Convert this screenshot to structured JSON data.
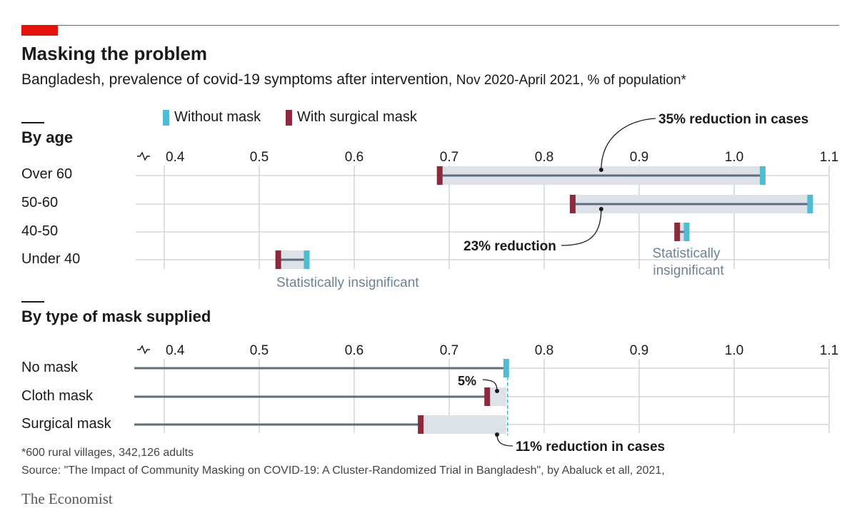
{
  "header": {
    "title": "Masking the problem",
    "subtitle_main": "Bangladesh, prevalence of covid-19 symptoms after intervention,",
    "subtitle_detail": " Nov 2020-April 2021, % of population*"
  },
  "legend": {
    "without": "Without mask",
    "with": "With surgical mask"
  },
  "colors": {
    "without": "#4fbcd2",
    "with": "#8b2a3c",
    "line": "#5b6e7e",
    "band": "#dde2e8",
    "grid": "#c8d0d8",
    "accent": "#e3120b"
  },
  "sections": {
    "age": "By age",
    "mask": "By type of mask supplied"
  },
  "chart_data": [
    {
      "type": "dumbbell",
      "title": "By age",
      "xlim": [
        0.4,
        1.1
      ],
      "ticks": [
        "0.4",
        "0.5",
        "0.6",
        "0.7",
        "0.8",
        "0.9",
        "1.0",
        "1.1"
      ],
      "series": [
        {
          "name": "Without mask"
        },
        {
          "name": "With surgical mask"
        }
      ],
      "rows": [
        {
          "label": "Over 60",
          "with": 0.69,
          "without": 1.03
        },
        {
          "label": "50-60",
          "with": 0.83,
          "without": 1.08
        },
        {
          "label": "40-50",
          "with": 0.94,
          "without": 0.95
        },
        {
          "label": "Under 40",
          "with": 0.52,
          "without": 0.55
        }
      ],
      "annotations": [
        {
          "text": "35% reduction in cases",
          "row": 0
        },
        {
          "text": "23% reduction",
          "row": 1
        },
        {
          "text": "Statistically insignificant",
          "row": 2
        },
        {
          "text": "Statistically insignificant",
          "row": 3
        }
      ]
    },
    {
      "type": "bar",
      "title": "By type of mask supplied",
      "xlim": [
        0.4,
        1.1
      ],
      "ticks": [
        "0.4",
        "0.5",
        "0.6",
        "0.7",
        "0.8",
        "0.9",
        "1.0",
        "1.1"
      ],
      "rows": [
        {
          "label": "No mask",
          "value": 0.76
        },
        {
          "label": "Cloth mask",
          "value": 0.74
        },
        {
          "label": "Surgical mask",
          "value": 0.67
        }
      ],
      "annotations": [
        {
          "text": "5%",
          "row": 1
        },
        {
          "text": "11% reduction in cases",
          "row": 2
        }
      ]
    }
  ],
  "footer": {
    "footnote": "*600 rural villages, 342,126 adults",
    "source": "Source: \"The Impact of Community Masking on COVID-19: A Cluster-Randomized Trial in Bangladesh\", by Abaluck et all, 2021,",
    "brand": "The Economist"
  }
}
